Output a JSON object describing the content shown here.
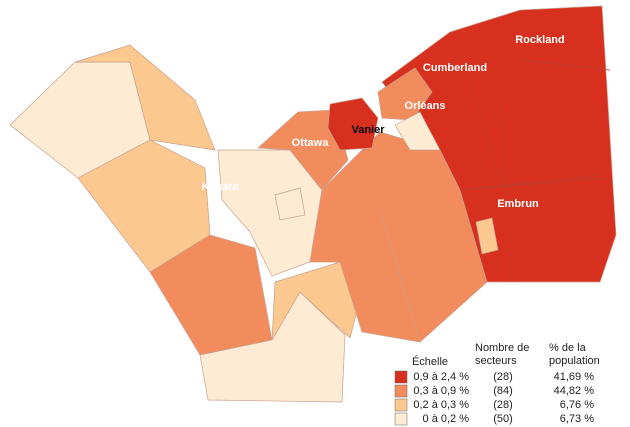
{
  "places": [
    "Rockland",
    "Cumberland",
    "Orléans",
    "Vanier",
    "Ottawa",
    "Kanata",
    "Embrun"
  ],
  "legend": {
    "title": "Échelle",
    "columns": [
      [
        "Nombre de",
        "secteurs"
      ],
      [
        "% de la",
        "population"
      ]
    ],
    "rows": [
      {
        "range": "0,9 à 2,4 %",
        "count": "(28)",
        "share": "41,69 %",
        "color": "#d7301f"
      },
      {
        "range": "0,3 à 0,9 %",
        "count": "(84)",
        "share": "44,82 %",
        "color": "#f28c5c"
      },
      {
        "range": "0,2 à 0,3 %",
        "count": "(28)",
        "share": "6,76 %",
        "color": "#fbc98f"
      },
      {
        "range": "0 à 0,2 %",
        "count": "(50)",
        "share": "6,73 %",
        "color": "#fdebd3"
      }
    ]
  }
}
